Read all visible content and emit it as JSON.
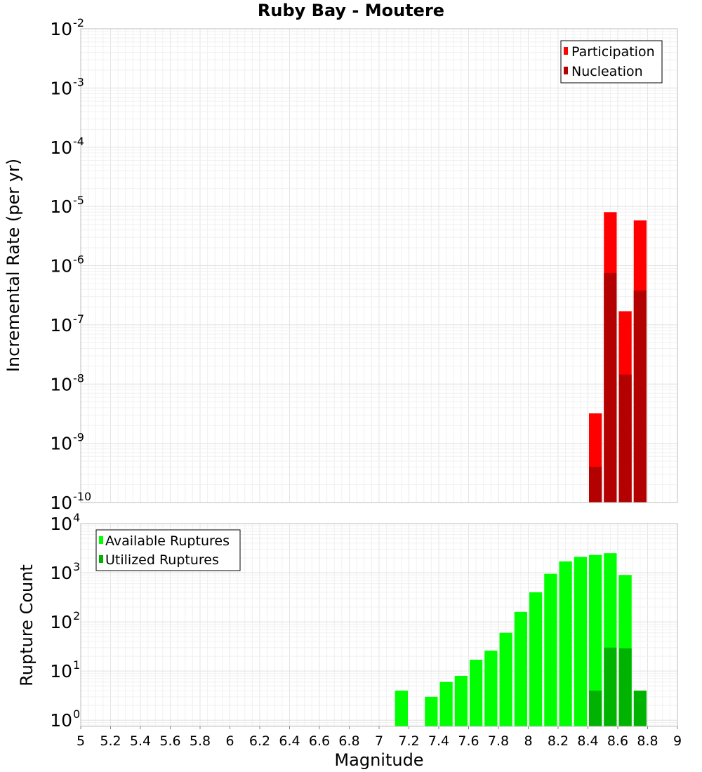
{
  "chart_data": [
    {
      "type": "bar",
      "title": "Ruby Bay - Moutere",
      "xlabel": "",
      "ylabel": "Incremental Rate (per yr)",
      "y_scale": "log",
      "ylim": [
        1e-10,
        0.01
      ],
      "xlim": [
        5,
        9
      ],
      "bin_width": 0.1,
      "grid": true,
      "legend_position": "top-right",
      "y_ticks": [
        {
          "base": "10",
          "exp": "-2",
          "value": 0.01
        },
        {
          "base": "10",
          "exp": "-3",
          "value": 0.001
        },
        {
          "base": "10",
          "exp": "-4",
          "value": 0.0001
        },
        {
          "base": "10",
          "exp": "-5",
          "value": 1e-05
        },
        {
          "base": "10",
          "exp": "-6",
          "value": 1e-06
        },
        {
          "base": "10",
          "exp": "-7",
          "value": 1e-07
        },
        {
          "base": "10",
          "exp": "-8",
          "value": 1e-08
        },
        {
          "base": "10",
          "exp": "-9",
          "value": 1e-09
        },
        {
          "base": "10",
          "exp": "-10",
          "value": 1e-10
        }
      ],
      "series": [
        {
          "name": "Participation",
          "color": "#ff0000",
          "x": [
            8.45,
            8.55,
            8.65,
            8.75
          ],
          "values": [
            3.2e-09,
            8e-06,
            1.7e-07,
            5.8e-06
          ]
        },
        {
          "name": "Nucleation",
          "color": "#b30000",
          "x": [
            8.45,
            8.55,
            8.65,
            8.75
          ],
          "values": [
            4e-10,
            7.5e-07,
            1.45e-08,
            3.8e-07
          ]
        }
      ]
    },
    {
      "type": "bar",
      "title": "",
      "xlabel": "Magnitude",
      "ylabel": "Rupture Count",
      "y_scale": "log",
      "ylim": [
        0.75,
        10000
      ],
      "xlim": [
        5,
        9
      ],
      "bin_width": 0.1,
      "grid": true,
      "legend_position": "top-left",
      "x_ticks": [
        "5",
        "5.2",
        "5.4",
        "5.6",
        "5.8",
        "6",
        "6.2",
        "6.4",
        "6.6",
        "6.8",
        "7",
        "7.2",
        "7.4",
        "7.6",
        "7.8",
        "8",
        "8.2",
        "8.4",
        "8.6",
        "8.8",
        "9"
      ],
      "y_ticks": [
        {
          "base": "10",
          "exp": "0",
          "value": 1
        },
        {
          "base": "10",
          "exp": "1",
          "value": 10
        },
        {
          "base": "10",
          "exp": "2",
          "value": 100
        },
        {
          "base": "10",
          "exp": "3",
          "value": 1000
        },
        {
          "base": "10",
          "exp": "4",
          "value": 10000
        }
      ],
      "series": [
        {
          "name": "Available Ruptures",
          "color": "#00ff00",
          "x": [
            7.15,
            7.35,
            7.45,
            7.55,
            7.65,
            7.75,
            7.85,
            7.95,
            8.05,
            8.15,
            8.25,
            8.35,
            8.45,
            8.55,
            8.65
          ],
          "values": [
            4,
            3,
            6,
            8,
            17,
            26,
            60,
            160,
            400,
            950,
            1700,
            2100,
            2300,
            2500,
            900
          ]
        },
        {
          "name": "Utilized Ruptures",
          "color": "#00b300",
          "x": [
            8.45,
            8.55,
            8.65,
            8.75
          ],
          "values": [
            4,
            30,
            29,
            4
          ]
        }
      ]
    }
  ]
}
